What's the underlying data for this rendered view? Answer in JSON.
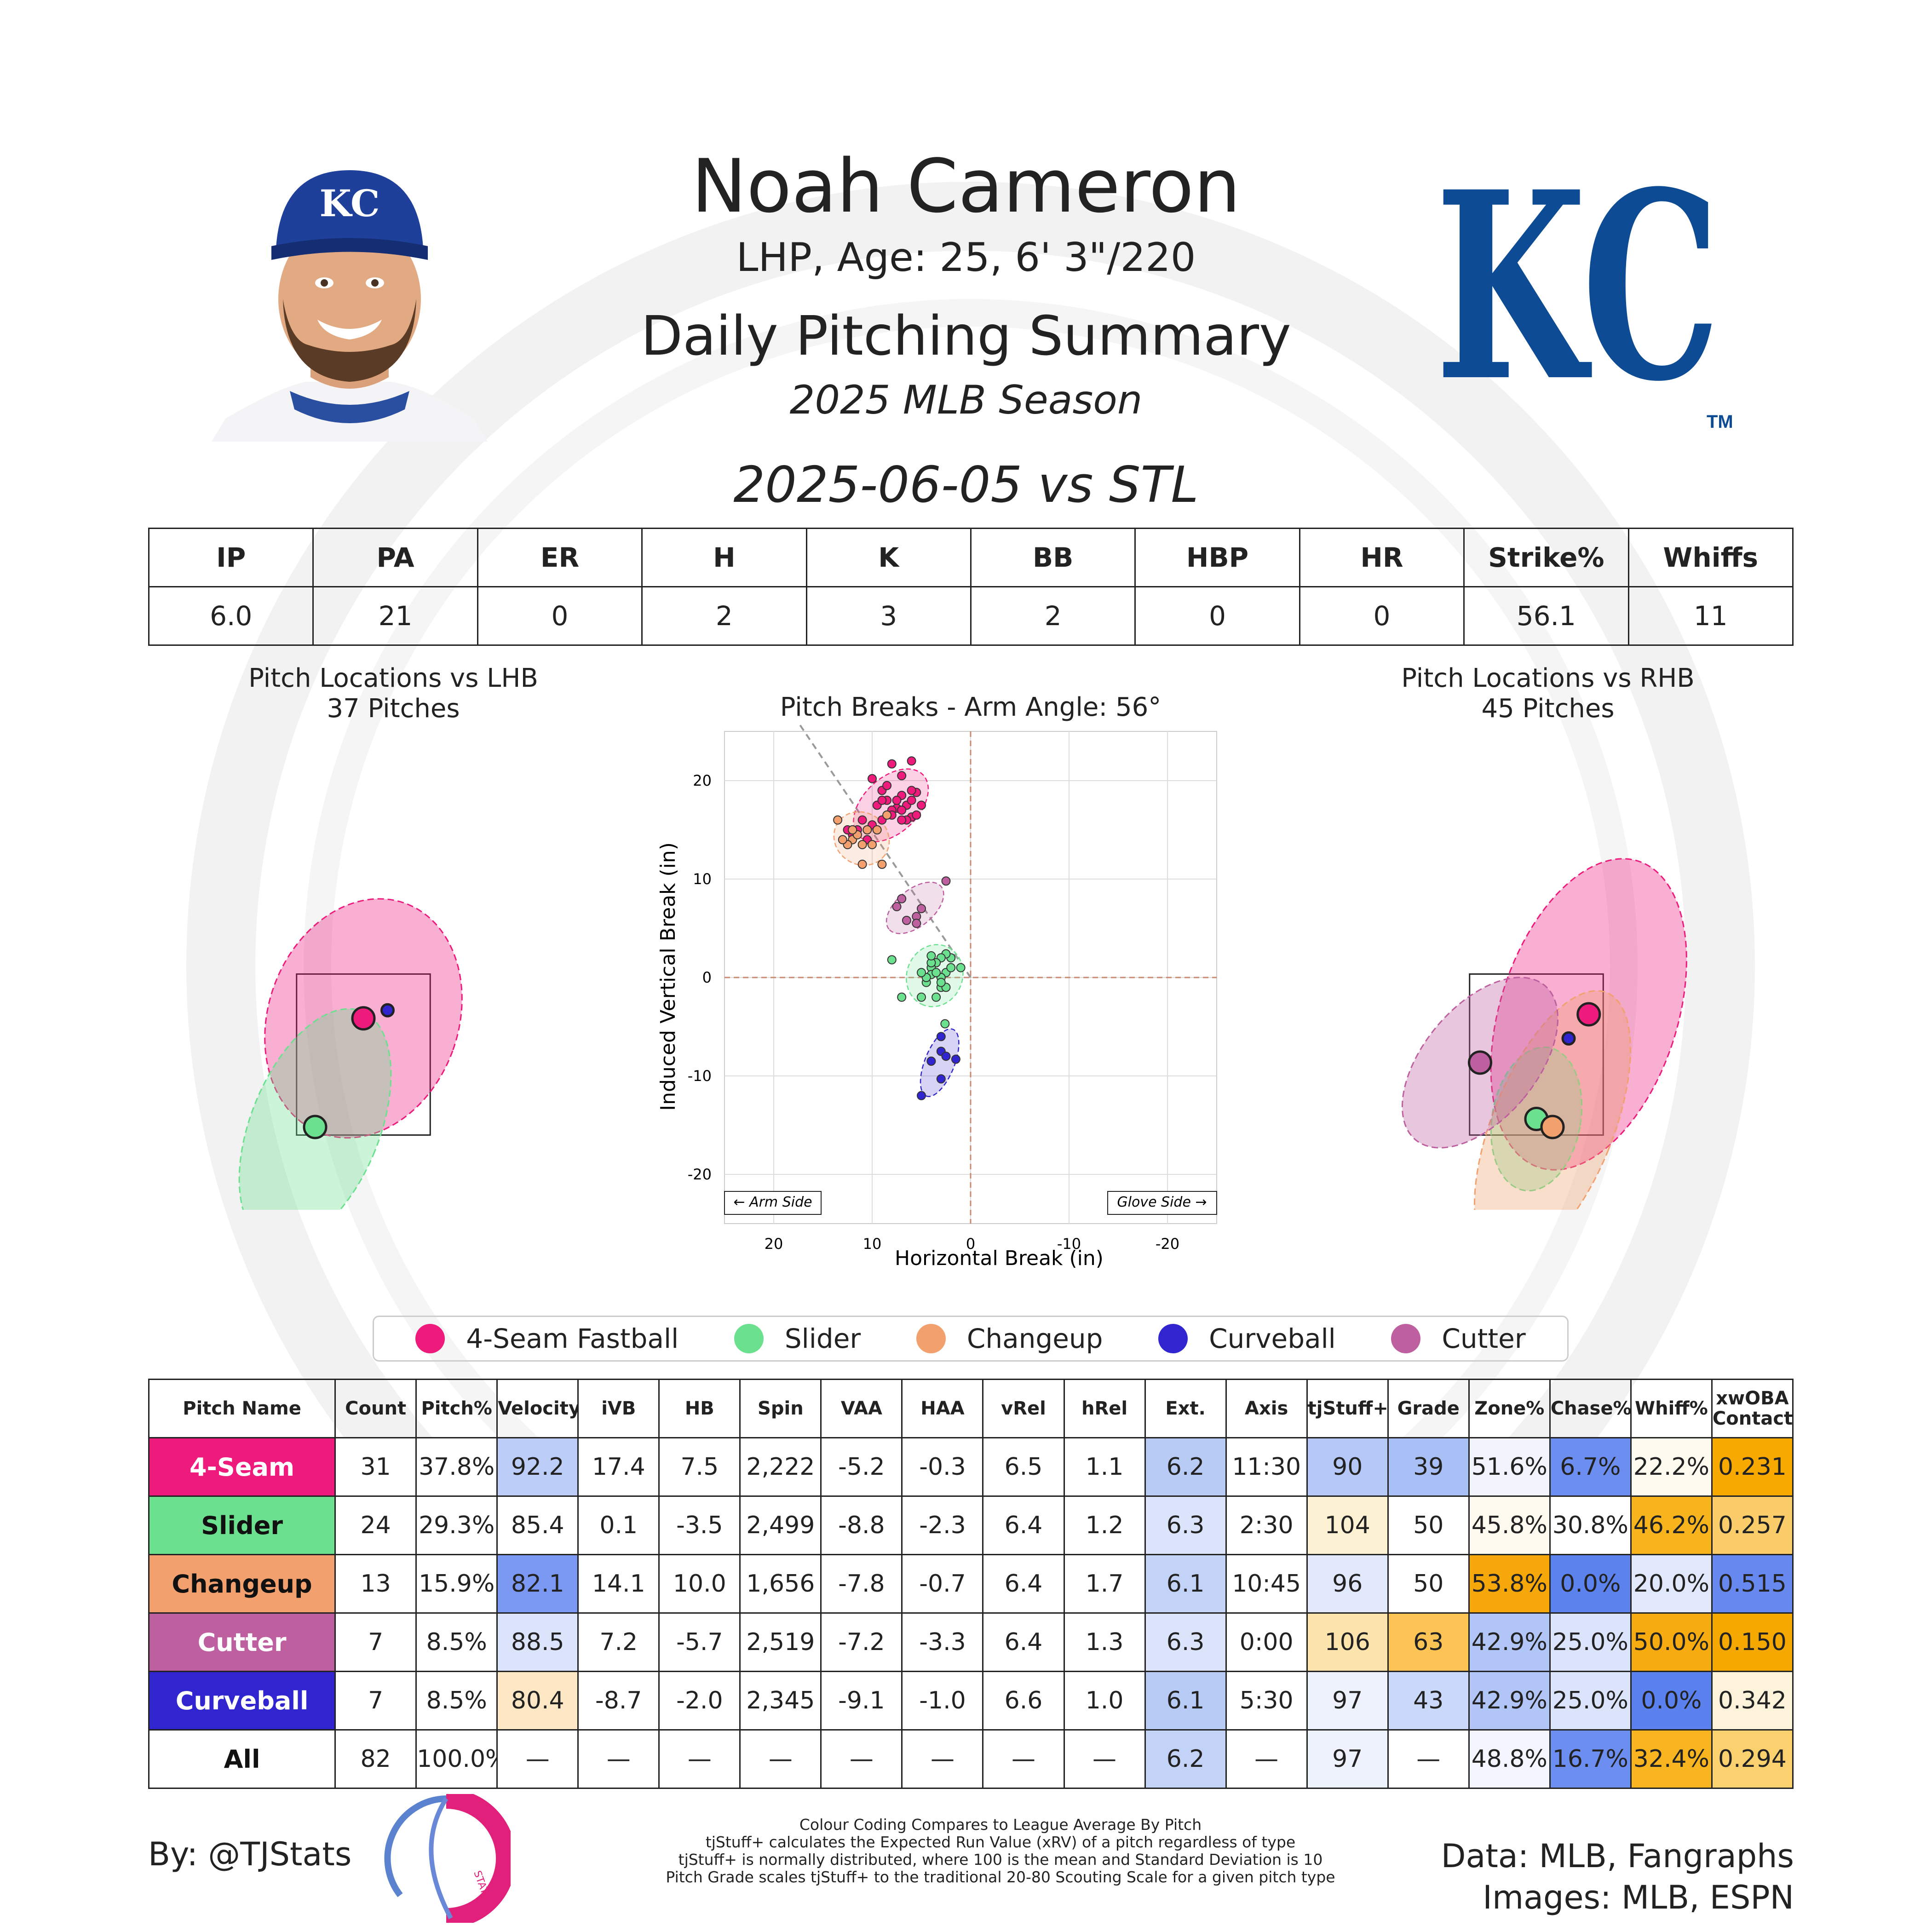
{
  "header": {
    "player_name": "Noah Cameron",
    "player_bio": "LHP, Age: 25, 6' 3\"/220",
    "report_title": "Daily Pitching Summary",
    "season_label": "2025 MLB Season",
    "game_label": "2025-06-05 vs STL",
    "team_logo_text": "KC",
    "trademark": "TM"
  },
  "game_stats": {
    "headers": [
      "IP",
      "PA",
      "ER",
      "H",
      "K",
      "BB",
      "HBP",
      "HR",
      "Strike%",
      "Whiffs"
    ],
    "values": [
      "6.0",
      "21",
      "0",
      "2",
      "3",
      "2",
      "0",
      "0",
      "56.1",
      "11"
    ]
  },
  "colors": {
    "four_seam": "#ee1b7c",
    "slider": "#6be08f",
    "changeup": "#f2a06e",
    "curveball": "#3025cf",
    "cutter": "#be5fa0"
  },
  "chart_data": [
    {
      "type": "scatter",
      "title": "Pitch Locations vs LHB",
      "subtitle": "37 Pitches",
      "series": [
        {
          "name": "4-Seam Fastball",
          "color": "#ee1b7c",
          "mean": [
            0.0,
            2.95
          ],
          "ellipse": {
            "rx": 1.18,
            "ry": 1.52,
            "angle": 20
          }
        },
        {
          "name": "Slider",
          "color": "#6be08f",
          "mean": [
            -0.6,
            1.6
          ],
          "ellipse": {
            "rx": 0.8,
            "ry": 1.55,
            "angle": 22
          }
        },
        {
          "name": "Curveball",
          "color": "#3025cf",
          "mean": [
            0.3,
            3.05
          ],
          "ellipse": null
        }
      ]
    },
    {
      "type": "scatter",
      "title": "Pitch Breaks - Arm Angle: 56°",
      "xlabel": "Horizontal Break (in)",
      "ylabel": "Induced Vertical Break (in)",
      "xlim": [
        25,
        -25
      ],
      "ylim": [
        -25,
        25
      ],
      "xticks": [
        20,
        10,
        0,
        -10,
        -20
      ],
      "yticks": [
        20,
        10,
        0,
        -10,
        -20
      ],
      "annotations": [
        "← Arm Side",
        "Glove Side →"
      ],
      "series": [
        {
          "name": "4-Seam Fastball",
          "color": "#ee1b7c",
          "points": [
            [
              10,
              20.2
            ],
            [
              9,
              19
            ],
            [
              8,
              21.7
            ],
            [
              6,
              22
            ],
            [
              7,
              20.5
            ],
            [
              8.5,
              18
            ],
            [
              9.5,
              17.5
            ],
            [
              7.5,
              17.2
            ],
            [
              6.5,
              17.5
            ],
            [
              8,
              17
            ],
            [
              7,
              18.5
            ],
            [
              5.5,
              18.8
            ],
            [
              9,
              16
            ],
            [
              8,
              16.5
            ],
            [
              6,
              16.3
            ],
            [
              5.5,
              16.5
            ],
            [
              6.5,
              16
            ],
            [
              7.5,
              18
            ],
            [
              10,
              15.5
            ],
            [
              11,
              16
            ],
            [
              12,
              14.5
            ],
            [
              12.5,
              15
            ],
            [
              10.5,
              14
            ],
            [
              11.5,
              15
            ],
            [
              7,
              17
            ],
            [
              6,
              19
            ],
            [
              8.5,
              19.5
            ],
            [
              5,
              17.5
            ],
            [
              6,
              18
            ],
            [
              7,
              16
            ],
            [
              9,
              18
            ]
          ]
        },
        {
          "name": "Slider",
          "color": "#6be08f",
          "points": [
            [
              2,
              2
            ],
            [
              2.5,
              2.4
            ],
            [
              3,
              2
            ],
            [
              3.5,
              1.5
            ],
            [
              4,
              1
            ],
            [
              2.5,
              0.5
            ],
            [
              3,
              0
            ],
            [
              4,
              0.3
            ],
            [
              4.5,
              -0.5
            ],
            [
              3,
              -1
            ],
            [
              3.5,
              -2
            ],
            [
              5,
              -2
            ],
            [
              7,
              -2
            ],
            [
              8,
              1.8
            ],
            [
              4,
              1.5
            ],
            [
              3.5,
              0.5
            ],
            [
              4.5,
              0
            ],
            [
              2,
              1
            ],
            [
              1,
              1
            ],
            [
              2.5,
              -1
            ],
            [
              3,
              -0.5
            ],
            [
              5,
              0.5
            ],
            [
              2.6,
              -4.7
            ],
            [
              4,
              2.2
            ]
          ]
        },
        {
          "name": "Changeup",
          "color": "#f2a06e",
          "points": [
            [
              13.5,
              16
            ],
            [
              12,
              14
            ],
            [
              11,
              13.5
            ],
            [
              12.5,
              13.5
            ],
            [
              9.5,
              15
            ],
            [
              10,
              13.5
            ],
            [
              11.5,
              14.5
            ],
            [
              11,
              11.5
            ],
            [
              9,
              11.5
            ],
            [
              13,
              14
            ],
            [
              10.5,
              15
            ],
            [
              8.5,
              16.5
            ],
            [
              12,
              15
            ]
          ]
        },
        {
          "name": "Curveball",
          "color": "#3025cf",
          "points": [
            [
              3,
              -6
            ],
            [
              3,
              -7.5
            ],
            [
              2.5,
              -8
            ],
            [
              1.5,
              -8.3
            ],
            [
              4,
              -8.5
            ],
            [
              3,
              -10.3
            ],
            [
              5,
              -12
            ]
          ]
        },
        {
          "name": "Cutter",
          "color": "#be5fa0",
          "points": [
            [
              2.5,
              9.8
            ],
            [
              5,
              7
            ],
            [
              5.5,
              6.2
            ],
            [
              5.5,
              5.5
            ],
            [
              7,
              8
            ],
            [
              7.5,
              7.2
            ],
            [
              6.5,
              5.8
            ]
          ]
        }
      ]
    },
    {
      "type": "scatter",
      "title": "Pitch Locations vs RHB",
      "subtitle": "45 Pitches",
      "series": [
        {
          "name": "4-Seam Fastball",
          "color": "#ee1b7c",
          "mean": [
            0.65,
            3.0
          ],
          "ellipse": {
            "rx": 1.1,
            "ry": 2.0,
            "angle": 18
          }
        },
        {
          "name": "Slider",
          "color": "#6be08f",
          "mean": [
            0.0,
            1.7
          ],
          "ellipse": {
            "rx": 0.55,
            "ry": 0.9,
            "angle": 10
          }
        },
        {
          "name": "Changeup",
          "color": "#f2a06e",
          "mean": [
            0.2,
            1.6
          ],
          "ellipse": {
            "rx": 0.75,
            "ry": 1.8,
            "angle": 22
          }
        },
        {
          "name": "Curveball",
          "color": "#3025cf",
          "mean": [
            0.4,
            2.7
          ],
          "ellipse": null
        },
        {
          "name": "Cutter",
          "color": "#be5fa0",
          "mean": [
            -0.7,
            2.4
          ],
          "ellipse": {
            "rx": 0.7,
            "ry": 1.25,
            "angle": 40
          }
        }
      ]
    }
  ],
  "legend": [
    {
      "label": "4-Seam Fastball",
      "color": "#ee1b7c"
    },
    {
      "label": "Slider",
      "color": "#6be08f"
    },
    {
      "label": "Changeup",
      "color": "#f2a06e"
    },
    {
      "label": "Curveball",
      "color": "#3025cf"
    },
    {
      "label": "Cutter",
      "color": "#be5fa0"
    }
  ],
  "pitch_table": {
    "headers": [
      "Pitch Name",
      "Count",
      "Pitch%",
      "Velocity",
      "iVB",
      "HB",
      "Spin",
      "VAA",
      "HAA",
      "vRel",
      "hRel",
      "Ext.",
      "Axis",
      "tjStuff+",
      "Grade",
      "Zone%",
      "Chase%",
      "Whiff%",
      "xwOBA Contact"
    ],
    "rows": [
      {
        "name": "4-Seam",
        "name_bg": "#ee1b7c",
        "name_fg": "#ffffff",
        "cells": [
          "31",
          "37.8%",
          "92.2",
          "17.4",
          "7.5",
          "2,222",
          "-5.2",
          "-0.3",
          "6.5",
          "1.1",
          "6.2",
          "11:30",
          "90",
          "39",
          "51.6%",
          "6.7%",
          "22.2%",
          "0.231"
        ],
        "bgs": [
          "#fff",
          "#fff",
          "#bccdf8",
          "#fff",
          "#fff",
          "#fff",
          "#fff",
          "#fff",
          "#fff",
          "#fff",
          "#b8cbf5",
          "#fff",
          "#b5c8f7",
          "#a8c0f5",
          "#f1f3fd",
          "#6c8ef0",
          "#fffaf0",
          "#f8a900"
        ]
      },
      {
        "name": "Slider",
        "name_bg": "#6be08f",
        "name_fg": "#111111",
        "cells": [
          "24",
          "29.3%",
          "85.4",
          "0.1",
          "-3.5",
          "2,499",
          "-8.8",
          "-2.3",
          "6.4",
          "1.2",
          "6.3",
          "2:30",
          "104",
          "50",
          "45.8%",
          "30.8%",
          "46.2%",
          "0.257"
        ],
        "bgs": [
          "#fff",
          "#fff",
          "#fff",
          "#fff",
          "#fff",
          "#fff",
          "#fff",
          "#fff",
          "#fff",
          "#fff",
          "#dbe4fb",
          "#fff",
          "#fdf1d4",
          "#fff",
          "#fffaf0",
          "#fff",
          "#f8b41c",
          "#fbcd6a"
        ]
      },
      {
        "name": "Changeup",
        "name_bg": "#f2a06e",
        "name_fg": "#111111",
        "cells": [
          "13",
          "15.9%",
          "82.1",
          "14.1",
          "10.0",
          "1,656",
          "-7.8",
          "-0.7",
          "6.4",
          "1.7",
          "6.1",
          "10:45",
          "96",
          "50",
          "53.8%",
          "0.0%",
          "20.0%",
          "0.515"
        ],
        "bgs": [
          "#fff",
          "#fff",
          "#7b99f2",
          "#fff",
          "#fff",
          "#fff",
          "#fff",
          "#fff",
          "#fff",
          "#fff",
          "#c3d3f8",
          "#fff",
          "#e2e9fc",
          "#fff",
          "#f6a70a",
          "#5c82ee",
          "#e1e8fb",
          "#6688ef"
        ]
      },
      {
        "name": "Cutter",
        "name_bg": "#be5fa0",
        "name_fg": "#ffffff",
        "cells": [
          "7",
          "8.5%",
          "88.5",
          "7.2",
          "-5.7",
          "2,519",
          "-7.2",
          "-3.3",
          "6.4",
          "1.3",
          "6.3",
          "0:00",
          "106",
          "63",
          "42.9%",
          "25.0%",
          "50.0%",
          "0.150"
        ],
        "bgs": [
          "#fff",
          "#fff",
          "#dbe4fb",
          "#fff",
          "#fff",
          "#fff",
          "#fff",
          "#fff",
          "#fff",
          "#fff",
          "#dbe4fb",
          "#fff",
          "#fde4ad",
          "#fbc454",
          "#b1c6f6",
          "#dbe4fb",
          "#f6ab11",
          "#f5a800"
        ]
      },
      {
        "name": "Curveball",
        "name_bg": "#3025cf",
        "name_fg": "#ffffff",
        "cells": [
          "7",
          "8.5%",
          "80.4",
          "-8.7",
          "-2.0",
          "2,345",
          "-9.1",
          "-1.0",
          "6.6",
          "1.0",
          "6.1",
          "5:30",
          "97",
          "43",
          "42.9%",
          "25.0%",
          "0.0%",
          "0.342"
        ],
        "bgs": [
          "#fff",
          "#fff",
          "#fde7c4",
          "#fff",
          "#fff",
          "#fff",
          "#fff",
          "#fff",
          "#fff",
          "#fff",
          "#b8cbf5",
          "#fff",
          "#eef2fd",
          "#cad8f9",
          "#b1c6f6",
          "#dbe4fb",
          "#5b81ee",
          "#fdf2da"
        ]
      },
      {
        "name": "All",
        "name_bg": "#ffffff",
        "name_fg": "#111111",
        "cells": [
          "82",
          "100.0%",
          "—",
          "—",
          "—",
          "—",
          "—",
          "—",
          "—",
          "—",
          "6.2",
          "—",
          "97",
          "—",
          "48.8%",
          "16.7%",
          "32.4%",
          "0.294"
        ],
        "bgs": [
          "#fff",
          "#fff",
          "#fff",
          "#fff",
          "#fff",
          "#fff",
          "#fff",
          "#fff",
          "#fff",
          "#fff",
          "#c3d3f8",
          "#fff",
          "#eef2fd",
          "#fff",
          "#f3f6fe",
          "#6c8ef0",
          "#f8b51f",
          "#fbd06e"
        ]
      }
    ]
  },
  "footer": {
    "byline": "By: @TJStats",
    "sources_line1": "Data: MLB, Fangraphs",
    "sources_line2": "Images: MLB, ESPN",
    "logo_text": "STATS",
    "notes": [
      "Colour Coding Compares to League Average By Pitch",
      "tjStuff+ calculates the Expected Run Value (xRV) of a pitch regardless of type",
      "tjStuff+ is normally distributed, where 100 is the mean and Standard Deviation is 10",
      "Pitch Grade scales tjStuff+ to the traditional 20-80 Scouting Scale for a given pitch type"
    ]
  }
}
